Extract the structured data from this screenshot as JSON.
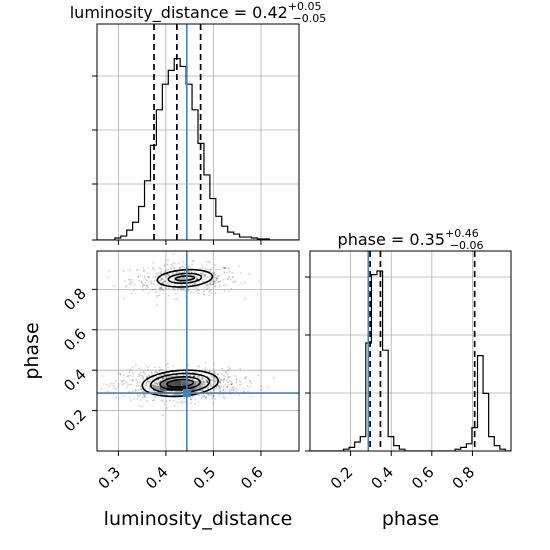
{
  "chart_data": {
    "type": "corner",
    "truth_color": "#4682b4",
    "line_color": "#000000",
    "grid": true,
    "parameters": [
      {
        "name": "luminosity_distance",
        "truth": 0.444,
        "quantiles": [
          0.375,
          0.423,
          0.473
        ],
        "title": {
          "prefix": "luminosity_distance = 0.42",
          "sup": "+0.05",
          "sub": "−0.05"
        },
        "xlabel": "luminosity_distance",
        "range": [
          0.255,
          0.68
        ],
        "ticks": [
          0.3,
          0.4,
          0.5,
          0.6
        ],
        "tick_labels": [
          "0.3",
          "0.4",
          "0.5",
          "0.6"
        ]
      },
      {
        "name": "phase",
        "truth": 0.287,
        "quantiles": [
          0.296,
          0.347,
          0.811
        ],
        "title": {
          "prefix": "phase = 0.35",
          "sup": "+0.46",
          "sub": "−0.06"
        },
        "xlabel": "phase",
        "ylabel": "phase",
        "range": [
          0.0,
          0.99
        ],
        "ticks": [
          0.2,
          0.4,
          0.6,
          0.8
        ],
        "tick_labels": [
          "0.2",
          "0.4",
          "0.6",
          "0.8"
        ]
      }
    ],
    "histograms": [
      {
        "param": "luminosity_distance",
        "bin_edges": [
          0.255,
          0.2675,
          0.28,
          0.2925,
          0.305,
          0.3175,
          0.33,
          0.3425,
          0.355,
          0.3675,
          0.38,
          0.3925,
          0.405,
          0.4175,
          0.43,
          0.4425,
          0.455,
          0.4675,
          0.48,
          0.4925,
          0.505,
          0.5175,
          0.53,
          0.5425,
          0.555,
          0.5675,
          0.58,
          0.5925,
          0.605,
          0.6175,
          0.63,
          0.6425,
          0.655,
          0.6675,
          0.68
        ],
        "counts": [
          0,
          0,
          0,
          0.01,
          0.02,
          0.05,
          0.09,
          0.17,
          0.3,
          0.48,
          0.66,
          0.79,
          0.86,
          0.92,
          0.88,
          0.79,
          0.66,
          0.49,
          0.33,
          0.21,
          0.12,
          0.07,
          0.04,
          0.03,
          0.015,
          0.015,
          0.01,
          0.005,
          0.005,
          0,
          0,
          0,
          0,
          0
        ]
      },
      {
        "param": "phase",
        "bin_edges": [
          0.0,
          0.0275,
          0.055,
          0.0825,
          0.11,
          0.1375,
          0.165,
          0.1925,
          0.22,
          0.2475,
          0.275,
          0.3025,
          0.33,
          0.3575,
          0.385,
          0.4125,
          0.44,
          0.4675,
          0.495,
          0.5225,
          0.55,
          0.5775,
          0.605,
          0.6325,
          0.66,
          0.6875,
          0.715,
          0.7425,
          0.77,
          0.7975,
          0.825,
          0.8525,
          0.88,
          0.9075,
          0.935,
          0.9625,
          0.99
        ],
        "counts": [
          0,
          0,
          0,
          0,
          0,
          0,
          0.01,
          0.02,
          0.05,
          0.08,
          0.6,
          0.98,
          1.0,
          0.56,
          0.08,
          0.03,
          0.01,
          0,
          0,
          0,
          0,
          0,
          0,
          0,
          0,
          0,
          0.01,
          0.02,
          0.04,
          0.13,
          0.53,
          0.32,
          0.08,
          0.03,
          0.01,
          0
        ]
      }
    ],
    "joint": {
      "x": "luminosity_distance",
      "y": "phase",
      "modes": [
        {
          "x": 0.44,
          "y": 0.85,
          "sx": 0.045,
          "sy": 0.028,
          "weight": 0.35
        },
        {
          "x": 0.43,
          "y": 0.33,
          "sx": 0.05,
          "sy": 0.028,
          "weight": 0.65
        }
      ],
      "contours": [
        {
          "center": [
            0.44,
            0.855
          ],
          "rx": [
            0.02,
            0.035,
            0.058
          ],
          "ry": [
            0.011,
            0.024,
            0.042
          ]
        },
        {
          "center": [
            0.43,
            0.335
          ],
          "rx": [
            0.028,
            0.042,
            0.062,
            0.08
          ],
          "ry": [
            0.018,
            0.031,
            0.048,
            0.064
          ]
        }
      ],
      "density_cells": [
        {
          "x": 0.41,
          "y": 0.31,
          "v": 1.0
        },
        {
          "x": 0.425,
          "y": 0.31,
          "v": 1.0
        },
        {
          "x": 0.44,
          "y": 0.31,
          "v": 0.95
        },
        {
          "x": 0.395,
          "y": 0.31,
          "v": 0.7
        },
        {
          "x": 0.455,
          "y": 0.31,
          "v": 0.65
        },
        {
          "x": 0.41,
          "y": 0.335,
          "v": 0.75
        },
        {
          "x": 0.425,
          "y": 0.335,
          "v": 0.8
        },
        {
          "x": 0.44,
          "y": 0.335,
          "v": 0.65
        },
        {
          "x": 0.395,
          "y": 0.335,
          "v": 0.55
        },
        {
          "x": 0.455,
          "y": 0.335,
          "v": 0.5
        },
        {
          "x": 0.47,
          "y": 0.335,
          "v": 0.35
        },
        {
          "x": 0.38,
          "y": 0.31,
          "v": 0.45
        },
        {
          "x": 0.47,
          "y": 0.31,
          "v": 0.4
        },
        {
          "x": 0.41,
          "y": 0.36,
          "v": 0.35
        },
        {
          "x": 0.425,
          "y": 0.36,
          "v": 0.35
        },
        {
          "x": 0.44,
          "y": 0.36,
          "v": 0.3
        },
        {
          "x": 0.395,
          "y": 0.285,
          "v": 0.3
        },
        {
          "x": 0.425,
          "y": 0.285,
          "v": 0.35
        },
        {
          "x": 0.455,
          "y": 0.285,
          "v": 0.3
        },
        {
          "x": 0.44,
          "y": 0.84,
          "v": 0.25
        },
        {
          "x": 0.425,
          "y": 0.855,
          "v": 0.25
        },
        {
          "x": 0.455,
          "y": 0.855,
          "v": 0.2
        }
      ]
    }
  }
}
